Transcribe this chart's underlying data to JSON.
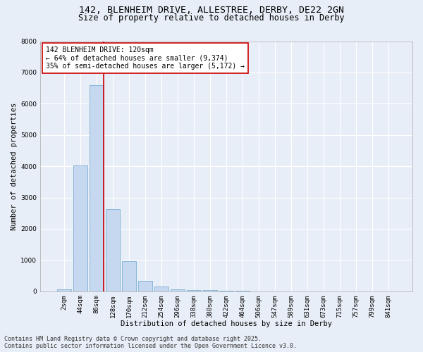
{
  "title_line1": "142, BLENHEIM DRIVE, ALLESTREE, DERBY, DE22 2GN",
  "title_line2": "Size of property relative to detached houses in Derby",
  "xlabel": "Distribution of detached houses by size in Derby",
  "ylabel": "Number of detached properties",
  "categories": [
    "2sqm",
    "44sqm",
    "86sqm",
    "128sqm",
    "170sqm",
    "212sqm",
    "254sqm",
    "296sqm",
    "338sqm",
    "380sqm",
    "422sqm",
    "464sqm",
    "506sqm",
    "547sqm",
    "589sqm",
    "631sqm",
    "673sqm",
    "715sqm",
    "757sqm",
    "799sqm",
    "841sqm"
  ],
  "values": [
    60,
    4020,
    6600,
    2630,
    970,
    340,
    150,
    70,
    50,
    30,
    20,
    10,
    5,
    5,
    5,
    5,
    5,
    5,
    5,
    5,
    5
  ],
  "bar_color": "#c5d8ef",
  "bar_edge_color": "#7baed4",
  "vline_color": "#cc0000",
  "vline_pos": 2.43,
  "annotation_text": "142 BLENHEIM DRIVE: 120sqm\n← 64% of detached houses are smaller (9,374)\n35% of semi-detached houses are larger (5,172) →",
  "annotation_box_facecolor": "#ffffff",
  "annotation_box_edgecolor": "#cc0000",
  "ylim": [
    0,
    8000
  ],
  "yticks": [
    0,
    1000,
    2000,
    3000,
    4000,
    5000,
    6000,
    7000,
    8000
  ],
  "background_color": "#e8eef7",
  "grid_color": "#ffffff",
  "footer_line1": "Contains HM Land Registry data © Crown copyright and database right 2025.",
  "footer_line2": "Contains public sector information licensed under the Open Government Licence v3.0.",
  "title_fontsize": 9.5,
  "subtitle_fontsize": 8.5,
  "axis_label_fontsize": 7.5,
  "tick_fontsize": 6.5,
  "annotation_fontsize": 7,
  "footer_fontsize": 6
}
